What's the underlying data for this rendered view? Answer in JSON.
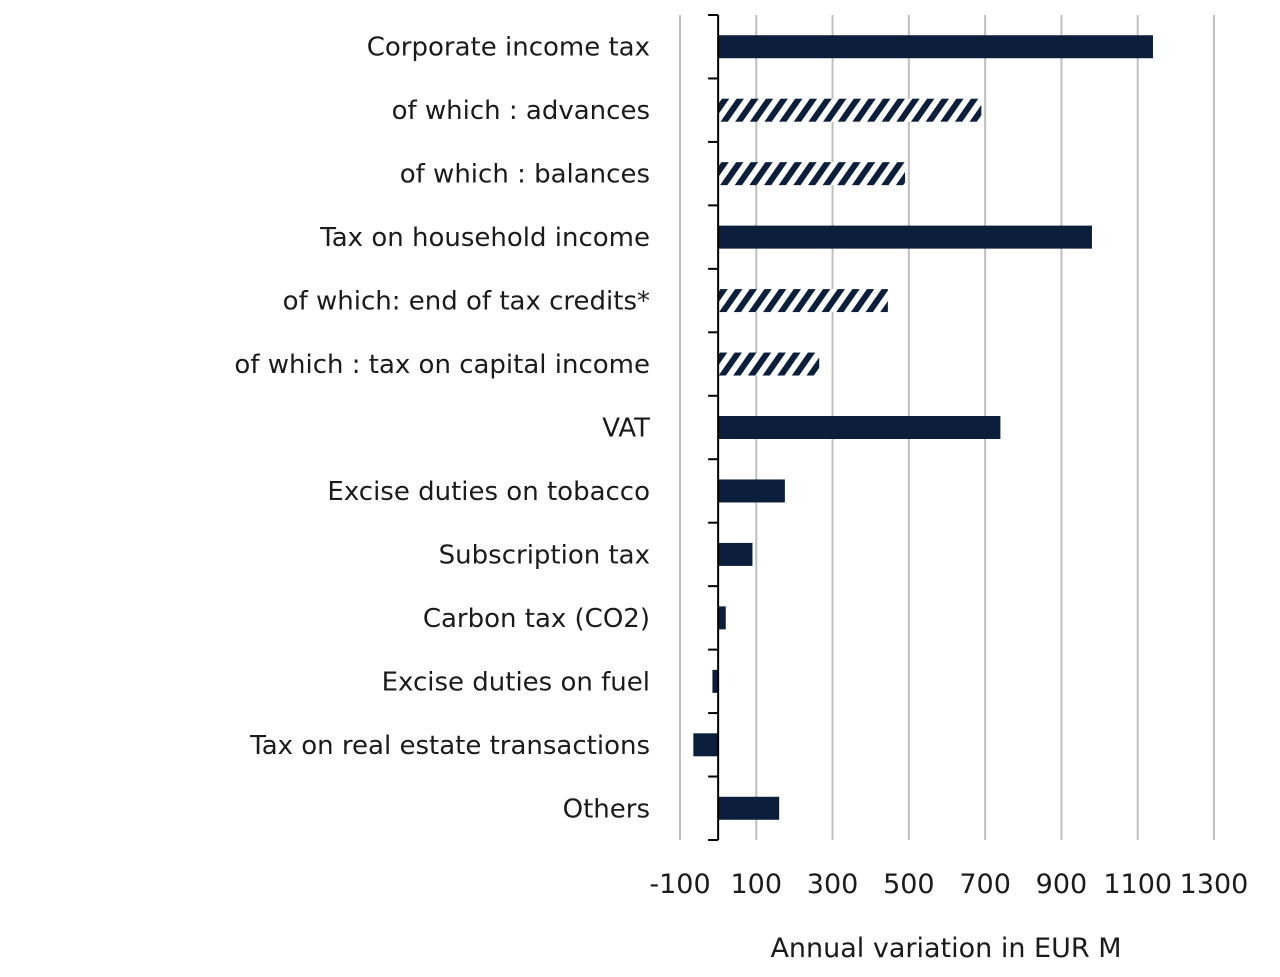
{
  "chart_data": {
    "type": "bar",
    "orientation": "horizontal",
    "categories": [
      "Corporate income tax",
      "of which : advances",
      "of which : balances",
      "Tax on household income",
      "of which: end of tax credits*",
      "of which : tax on capital income",
      "VAT",
      "Excise duties on tobacco",
      "Subscription tax",
      "Carbon tax (CO2)",
      "Excise duties on fuel",
      "Tax on real estate transactions",
      "Others"
    ],
    "values": [
      1140,
      690,
      490,
      980,
      445,
      265,
      740,
      175,
      90,
      20,
      -15,
      -65,
      160
    ],
    "bar_styles": [
      "solid",
      "hatched",
      "hatched",
      "solid",
      "hatched",
      "hatched",
      "solid",
      "solid",
      "solid",
      "solid",
      "solid",
      "solid",
      "solid"
    ],
    "xlabel": "Annual variation in EUR M",
    "ylabel": "",
    "xlim": [
      -100,
      1300
    ],
    "xticks": [
      -100,
      100,
      300,
      500,
      700,
      900,
      1100,
      1300
    ],
    "xtick_labels": [
      "-100",
      "100",
      "300",
      "500",
      "700",
      "900",
      "1100",
      "1300"
    ],
    "grid": true,
    "colors": {
      "bar": "#0b1e3b",
      "grid": "#bfbfbf",
      "axis": "#000000"
    }
  }
}
